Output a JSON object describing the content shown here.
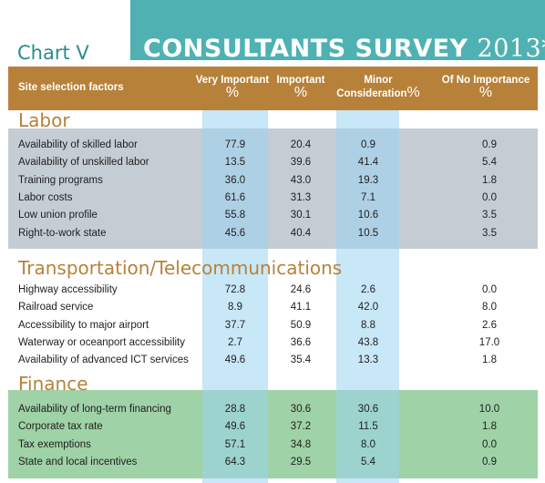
{
  "chart_label": "Chart V",
  "title": {
    "main": "CONSULTANTS SURVEY",
    "year": "2013*"
  },
  "header": {
    "factor": "Site selection factors",
    "columns": [
      {
        "line1": "Very Important",
        "pct": "%"
      },
      {
        "line1": "Important",
        "pct": "%"
      },
      {
        "line1": "Minor",
        "line2": "Consideration",
        "pct": "%"
      },
      {
        "line1": "Of  No Importance",
        "pct": "%"
      }
    ]
  },
  "colors": {
    "banner": "#4fb1b2",
    "header": "#b8813a",
    "labor_band": "#c5cdd4",
    "finance_band": "#9fd2a6",
    "column_highlight": "#9bd4f0"
  },
  "sections": [
    {
      "title": "Labor",
      "rows": [
        {
          "factor": "Availability of skilled labor",
          "values": [
            "77.9",
            "20.4",
            "0.9",
            "0.9"
          ]
        },
        {
          "factor": "Availability of unskilled labor",
          "values": [
            "13.5",
            "39.6",
            "41.4",
            "5.4"
          ]
        },
        {
          "factor": "Training programs",
          "values": [
            "36.0",
            "43.0",
            "19.3",
            "1.8"
          ]
        },
        {
          "factor": "Labor costs",
          "values": [
            "61.6",
            "31.3",
            "7.1",
            "0.0"
          ]
        },
        {
          "factor": "Low union profile",
          "values": [
            "55.8",
            "30.1",
            "10.6",
            "3.5"
          ]
        },
        {
          "factor": "Right-to-work state",
          "values": [
            "45.6",
            "40.4",
            "10.5",
            "3.5"
          ]
        }
      ]
    },
    {
      "title": "Transportation/Telecommunications",
      "rows": [
        {
          "factor": "Highway accessibility",
          "values": [
            "72.8",
            "24.6",
            "2.6",
            "0.0"
          ]
        },
        {
          "factor": "Railroad service",
          "values": [
            "8.9",
            "41.1",
            "42.0",
            "8.0"
          ]
        },
        {
          "factor": "Accessibility to major airport",
          "values": [
            "37.7",
            "50.9",
            "8.8",
            "2.6"
          ]
        },
        {
          "factor": "Waterway or oceanport accessibility",
          "values": [
            "2.7",
            "36.6",
            "43.8",
            "17.0"
          ]
        },
        {
          "factor": "Availability of advanced ICT services",
          "values": [
            "49.6",
            "35.4",
            "13.3",
            "1.8"
          ]
        }
      ]
    },
    {
      "title": "Finance",
      "rows": [
        {
          "factor": "Availability of long-term financing",
          "values": [
            "28.8",
            "30.6",
            "30.6",
            "10.0"
          ]
        },
        {
          "factor": "Corporate tax rate",
          "values": [
            "49.6",
            "37.2",
            "11.5",
            "1.8"
          ]
        },
        {
          "factor": "Tax exemptions",
          "values": [
            "57.1",
            "34.8",
            "8.0",
            "0.0"
          ]
        },
        {
          "factor": "State and local incentives",
          "values": [
            "64.3",
            "29.5",
            "5.4",
            "0.9"
          ]
        }
      ]
    }
  ]
}
